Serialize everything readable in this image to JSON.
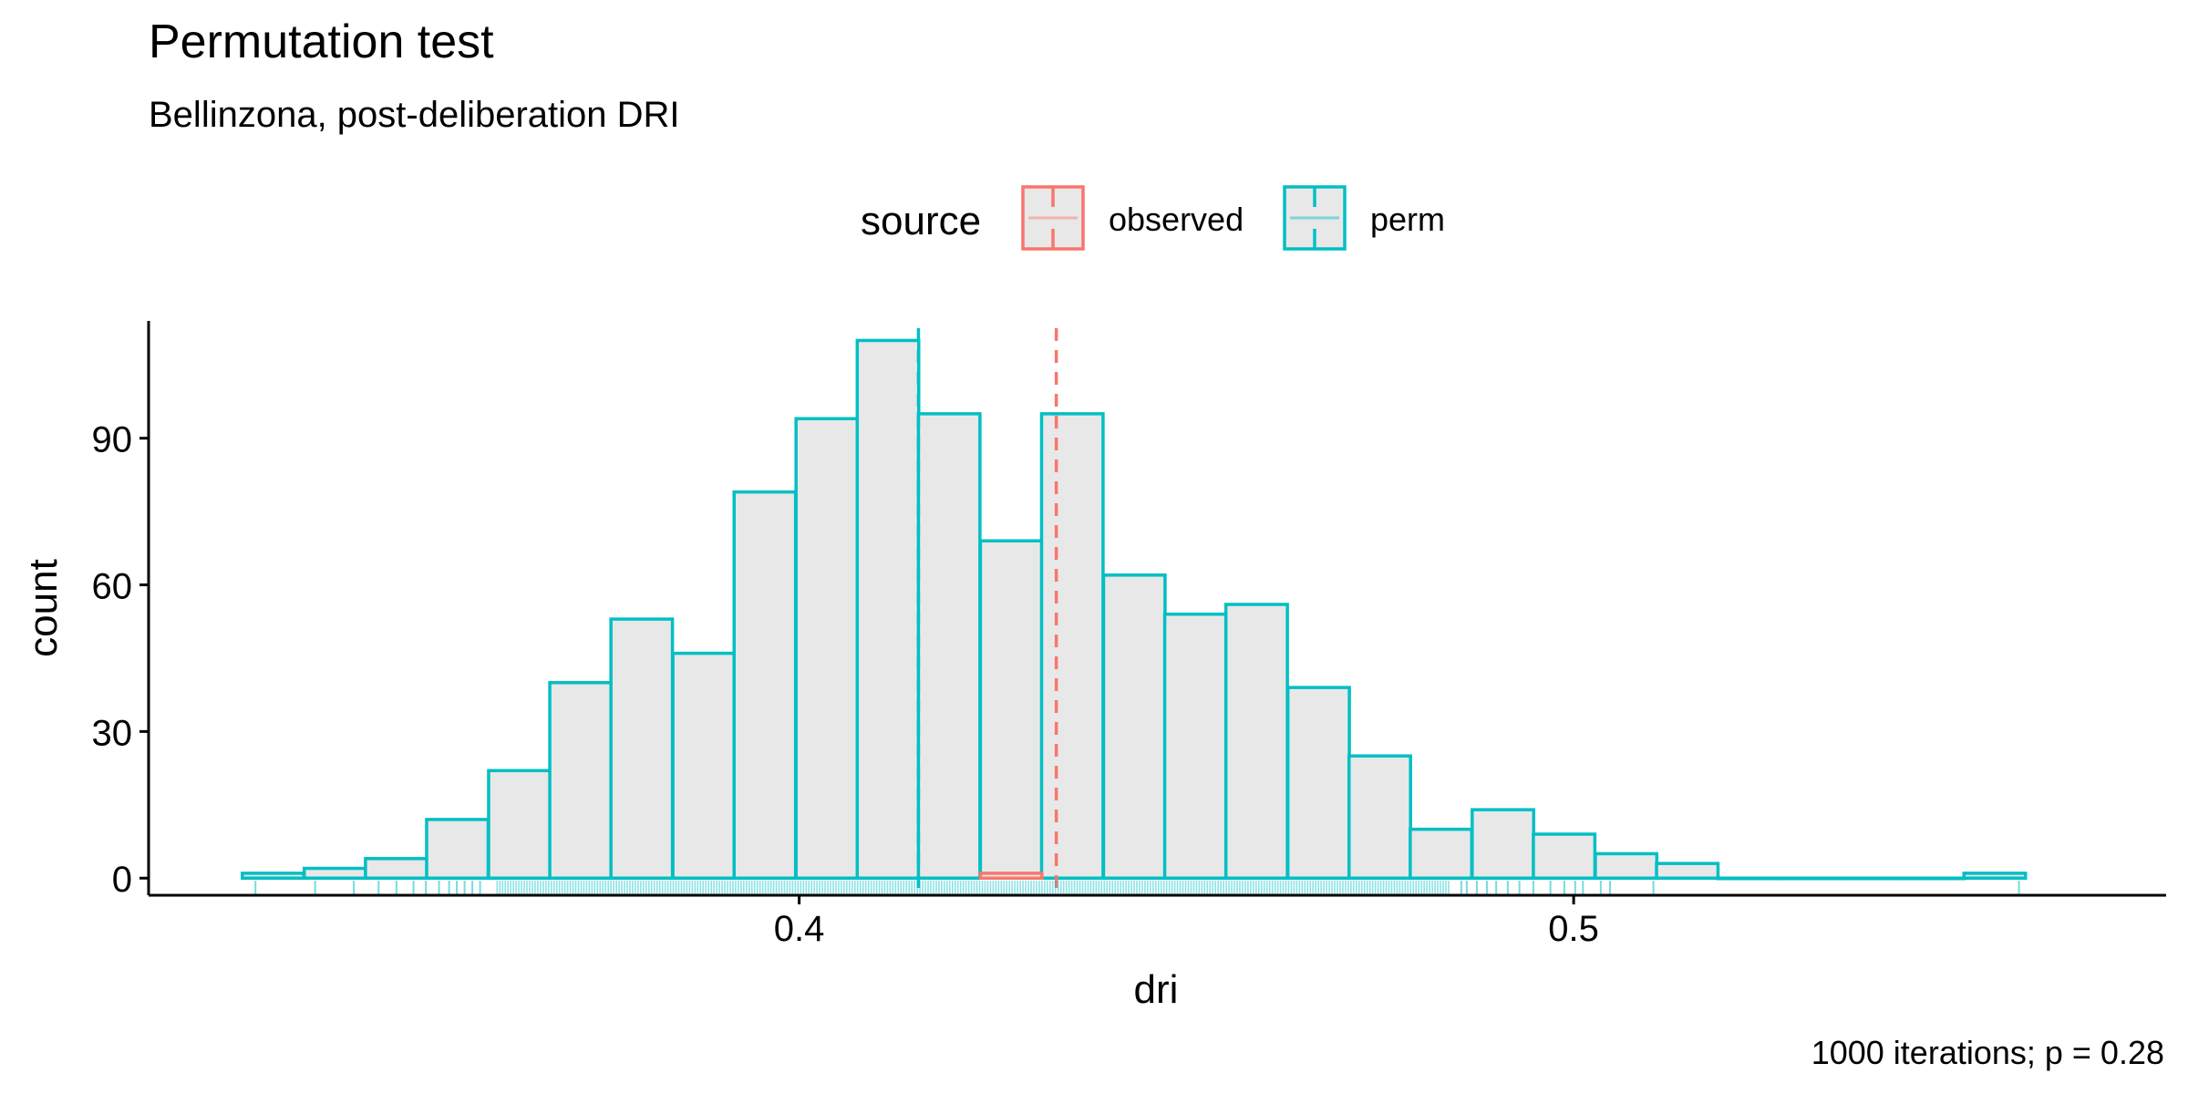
{
  "chart_data": {
    "type": "bar",
    "title": "Permutation test",
    "subtitle": "Bellinzona, post-deliberation DRI",
    "xlabel": "dri",
    "ylabel": "count",
    "caption": "1000 iterations; p = 0.28",
    "legend": {
      "title": "source",
      "placement": "top",
      "entries": [
        {
          "label": "observed",
          "color": "#F8766D"
        },
        {
          "label": "perm",
          "color": "#00BFC4"
        }
      ]
    },
    "xlim": [
      0.316,
      0.5765
    ],
    "ylim": [
      -3.5,
      114
    ],
    "x_ticks": [
      0.4,
      0.5
    ],
    "x_tick_labels": [
      "0.4",
      "0.5"
    ],
    "y_ticks": [
      0,
      30,
      60,
      90
    ],
    "y_tick_labels": [
      "0",
      "30",
      "60",
      "90"
    ],
    "grid": false,
    "bin_width": 0.00794,
    "bar_fill": "#E8E8E8",
    "series": [
      {
        "name": "perm",
        "color": "#00BFC4",
        "bin_starts": [
          0.3281,
          0.3361,
          0.344,
          0.3519,
          0.3599,
          0.3678,
          0.3757,
          0.3837,
          0.3916,
          0.3996,
          0.4075,
          0.4154,
          0.4234,
          0.4313,
          0.4393,
          0.4472,
          0.4551,
          0.4631,
          0.471,
          0.4789,
          0.4869,
          0.4948,
          0.5028,
          0.5107,
          0.5186,
          0.5266,
          0.5345,
          0.5425,
          0.5504
        ],
        "values": [
          1,
          2,
          4,
          12,
          22,
          40,
          53,
          46,
          79,
          94,
          110,
          95,
          69,
          95,
          62,
          54,
          56,
          39,
          25,
          10,
          14,
          9,
          5,
          3,
          0,
          0,
          0,
          0,
          1
        ],
        "mean_line": 0.4154
      },
      {
        "name": "observed",
        "color": "#F8766D",
        "bin_starts": [
          0.4234
        ],
        "values": [
          1
        ],
        "mean_line": 0.4332
      }
    ],
    "rug": {
      "color": "#00BFC4",
      "sparse_points": [
        0.3298,
        0.3375,
        0.3425,
        0.3457,
        0.348,
        0.3502,
        0.3518,
        0.3535,
        0.3548,
        0.3558,
        0.3568,
        0.3578,
        0.3588,
        0.4855,
        0.4862,
        0.4875,
        0.4888,
        0.49,
        0.4915,
        0.493,
        0.4948,
        0.497,
        0.4988,
        0.5002,
        0.5012,
        0.5035,
        0.5047,
        0.5103,
        0.5575
      ],
      "dense_range": [
        0.361,
        0.484
      ]
    }
  }
}
